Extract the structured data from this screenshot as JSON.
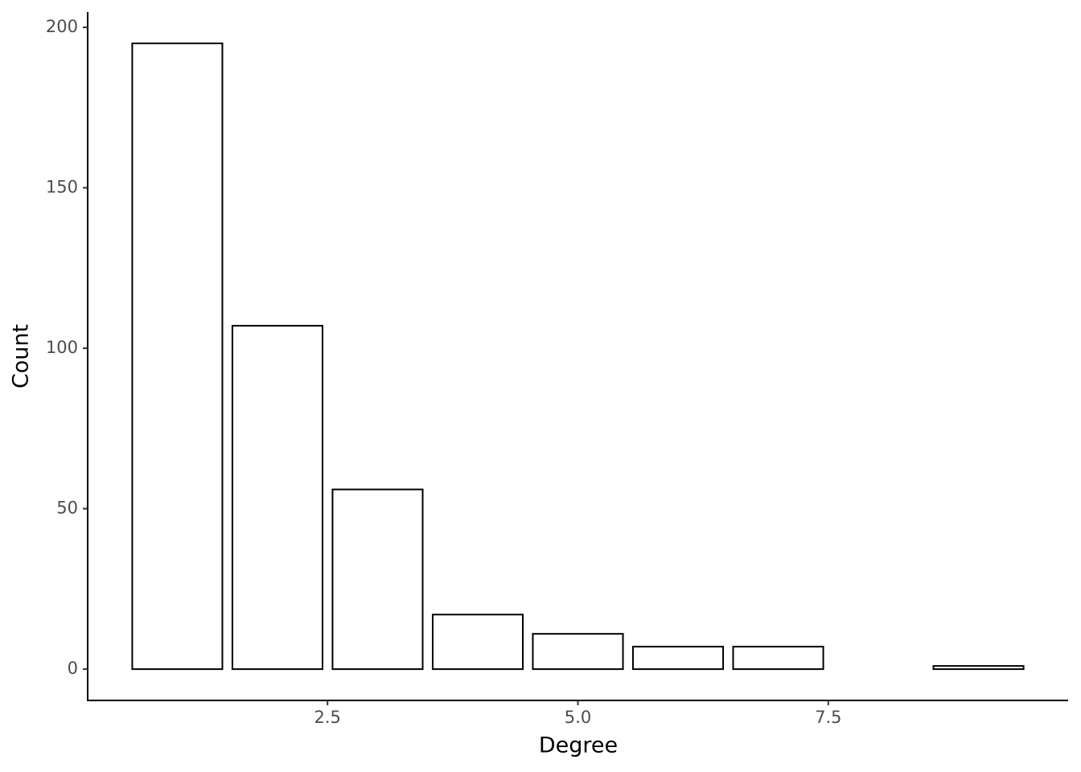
{
  "chart_data": {
    "type": "bar",
    "x": [
      1,
      2,
      3,
      4,
      5,
      6,
      7,
      9
    ],
    "values": [
      195,
      107,
      56,
      17,
      11,
      7,
      7,
      1
    ],
    "xlabel": "Degree",
    "ylabel": "Count",
    "xlim": [
      0.105,
      9.895
    ],
    "xticks": [
      2.5,
      {
        "value": 5,
        "label": "5.0"
      },
      7.5
    ],
    "ylim": [
      -9.75,
      204.75
    ],
    "yticks": [
      0,
      50,
      100,
      150,
      200
    ],
    "color": "#ffffff",
    "edgecolor": "#000000",
    "grid": false
  }
}
